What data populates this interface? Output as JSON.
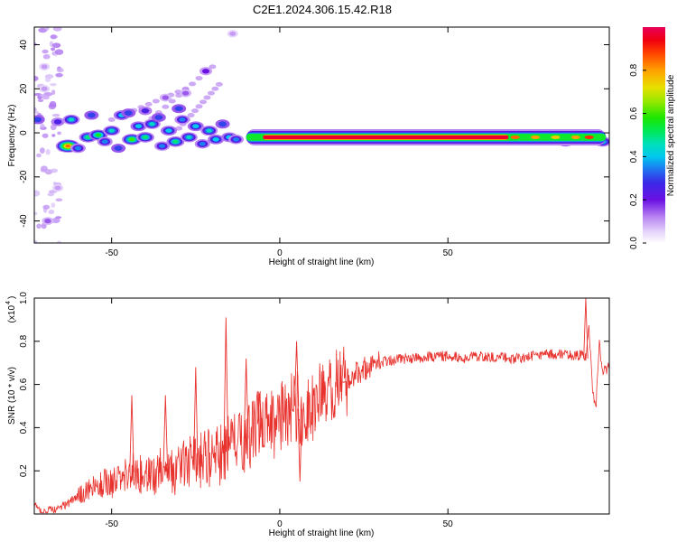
{
  "title": "C2E1.2024.306.15.42.R18",
  "chart_data": [
    {
      "type": "heatmap",
      "title": "C2E1.2024.306.15.42.R18",
      "xlabel": "Height of straight line (km)",
      "ylabel": "Frequency (Hz)",
      "xlim": [
        -73,
        98
      ],
      "ylim": [
        -50,
        48
      ],
      "x_ticks": [
        -50,
        0,
        50
      ],
      "x_tick_labels": [
        "-50",
        "0",
        "50"
      ],
      "y_ticks": [
        -40,
        -20,
        0,
        20,
        40
      ],
      "y_tick_labels": [
        "-40",
        "-20",
        "0",
        "20",
        "40"
      ],
      "colorbar": {
        "label": "Normalized spectral amplitude",
        "range": [
          0,
          1
        ],
        "ticks": [
          0.0,
          0.2,
          0.4,
          0.6,
          0.8
        ],
        "tick_labels": [
          "0.0",
          "0.2",
          "0.4",
          "0.6",
          "0.8"
        ]
      },
      "ridge": {
        "x_start": -10,
        "x_end": 97,
        "frequency": -2,
        "peak_start": -5,
        "peak_end": 68
      },
      "blobs": [
        {
          "x": -72,
          "y": 6,
          "a": 0.3
        },
        {
          "x": -66,
          "y": 5,
          "a": 0.25
        },
        {
          "x": -63,
          "y": -6,
          "a": 0.85
        },
        {
          "x": -60,
          "y": -7,
          "a": 0.35
        },
        {
          "x": -62,
          "y": 6,
          "a": 0.45
        },
        {
          "x": -56,
          "y": 8,
          "a": 0.3
        },
        {
          "x": -57,
          "y": -2,
          "a": 0.5
        },
        {
          "x": -54,
          "y": -1,
          "a": 0.55
        },
        {
          "x": -50,
          "y": 1,
          "a": 0.45
        },
        {
          "x": -47,
          "y": 8,
          "a": 0.4
        },
        {
          "x": -45,
          "y": 9,
          "a": 0.3
        },
        {
          "x": -52,
          "y": -4,
          "a": 0.35
        },
        {
          "x": -44,
          "y": -3,
          "a": 0.6
        },
        {
          "x": -42,
          "y": 3,
          "a": 0.4
        },
        {
          "x": -40,
          "y": -2,
          "a": 0.5
        },
        {
          "x": -38,
          "y": 4,
          "a": 0.45
        },
        {
          "x": -35,
          "y": -6,
          "a": 0.35
        },
        {
          "x": -33,
          "y": 1,
          "a": 0.4
        },
        {
          "x": -31,
          "y": -4,
          "a": 0.5
        },
        {
          "x": -29,
          "y": 6,
          "a": 0.35
        },
        {
          "x": -27,
          "y": -2,
          "a": 0.45
        },
        {
          "x": -25,
          "y": 3,
          "a": 0.4
        },
        {
          "x": -23,
          "y": -5,
          "a": 0.35
        },
        {
          "x": -21,
          "y": 1,
          "a": 0.45
        },
        {
          "x": -19,
          "y": -3,
          "a": 0.4
        },
        {
          "x": -17,
          "y": 4,
          "a": 0.3
        },
        {
          "x": -15,
          "y": -2,
          "a": 0.4
        },
        {
          "x": -13,
          "y": -3,
          "a": 0.35
        },
        {
          "x": -36,
          "y": 7,
          "a": 0.3
        },
        {
          "x": -48,
          "y": -7,
          "a": 0.3
        },
        {
          "x": -40,
          "y": 10,
          "a": 0.25
        },
        {
          "x": -30,
          "y": 11,
          "a": 0.3
        },
        {
          "x": -22,
          "y": 28,
          "a": 0.2
        },
        {
          "x": -28,
          "y": 18,
          "a": 0.15
        },
        {
          "x": -34,
          "y": 16,
          "a": 0.15
        },
        {
          "x": -14,
          "y": 45,
          "a": 0.1
        },
        {
          "x": -70,
          "y": 30,
          "a": 0.1
        },
        {
          "x": -69,
          "y": -40,
          "a": 0.15
        },
        {
          "x": -70,
          "y": 20,
          "a": 0.1
        },
        {
          "x": -66,
          "y": -25,
          "a": 0.1
        },
        {
          "x": 2,
          "y": -2,
          "a": 0.45
        },
        {
          "x": 6,
          "y": -3,
          "a": 0.4
        },
        {
          "x": 9,
          "y": -1,
          "a": 0.4
        },
        {
          "x": 93,
          "y": -3,
          "a": 0.5
        },
        {
          "x": 96,
          "y": -4,
          "a": 0.45
        },
        {
          "x": 90,
          "y": -1,
          "a": 0.35
        },
        {
          "x": 85,
          "y": -4,
          "a": 0.4
        }
      ]
    },
    {
      "type": "line",
      "xlabel": "Height of straight line (km)",
      "ylabel": "SNR (10 * v/v)",
      "yscale_label": "(x10",
      "yscale_exponent": "4",
      "xlim": [
        -73,
        98
      ],
      "ylim": [
        0,
        1.0
      ],
      "x_ticks": [
        -50,
        0,
        50
      ],
      "x_tick_labels": [
        "-50",
        "0",
        "50"
      ],
      "y_ticks": [
        0.2,
        0.4,
        0.6,
        0.8,
        1.0
      ],
      "y_tick_labels": [
        "0.2",
        "0.4",
        "0.6",
        "0.8",
        "1.0"
      ],
      "color": "#e8322d",
      "series": [
        {
          "name": "SNR",
          "x": [
            -73,
            -70,
            -67,
            -64,
            -61,
            -58,
            -55,
            -52,
            -49,
            -46,
            -43,
            -40,
            -37,
            -34,
            -31,
            -28,
            -25,
            -22,
            -19,
            -16,
            -13,
            -10,
            -7,
            -4,
            -1,
            2,
            5,
            8,
            11,
            14,
            17,
            20,
            23,
            26,
            29,
            32,
            35,
            40,
            45,
            50,
            55,
            60,
            65,
            70,
            75,
            80,
            85,
            88,
            90,
            91,
            92,
            93,
            94,
            95,
            96,
            98
          ],
          "values": [
            0.04,
            0.01,
            0.02,
            0.04,
            0.07,
            0.1,
            0.12,
            0.14,
            0.15,
            0.18,
            0.2,
            0.16,
            0.19,
            0.22,
            0.2,
            0.24,
            0.23,
            0.27,
            0.25,
            0.3,
            0.32,
            0.35,
            0.4,
            0.45,
            0.42,
            0.48,
            0.5,
            0.46,
            0.52,
            0.55,
            0.6,
            0.62,
            0.66,
            0.68,
            0.7,
            0.71,
            0.72,
            0.72,
            0.73,
            0.73,
            0.72,
            0.73,
            0.73,
            0.72,
            0.73,
            0.74,
            0.74,
            0.73,
            0.74,
            0.72,
            0.86,
            0.58,
            0.48,
            0.8,
            0.66,
            0.68
          ]
        }
      ],
      "spikes": [
        {
          "x": -44,
          "y": 0.55
        },
        {
          "x": -34,
          "y": 0.55
        },
        {
          "x": -25,
          "y": 0.68
        },
        {
          "x": -16,
          "y": 0.91
        },
        {
          "x": -10,
          "y": 0.72
        },
        {
          "x": -6,
          "y": 0.56
        },
        {
          "x": 5,
          "y": 0.8
        },
        {
          "x": 6,
          "y": 0.15
        },
        {
          "x": 19,
          "y": 0.61
        },
        {
          "x": 91,
          "y": 1.0
        }
      ]
    }
  ]
}
